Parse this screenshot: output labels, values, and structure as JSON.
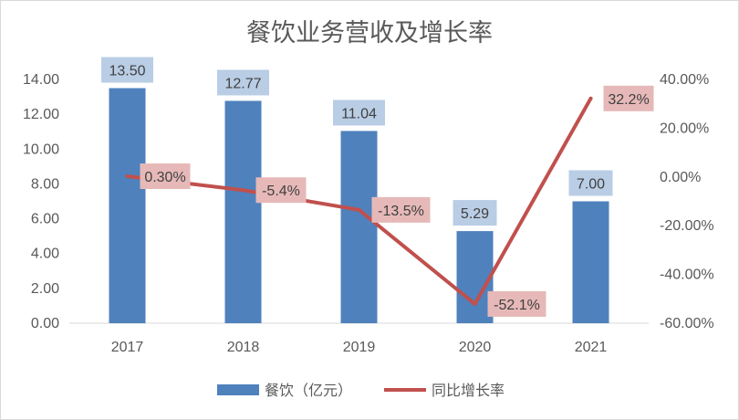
{
  "chart_data": {
    "type": "bar+line",
    "title": "餐饮业务营收及增长率",
    "categories": [
      "2017",
      "2018",
      "2019",
      "2020",
      "2021"
    ],
    "series": [
      {
        "name": "餐饮（亿元）",
        "type": "bar",
        "axis": "left",
        "values": [
          13.5,
          12.77,
          11.04,
          5.29,
          7.0
        ],
        "labels": [
          "13.50",
          "12.77",
          "11.04",
          "5.29",
          "7.00"
        ]
      },
      {
        "name": "同比增长率",
        "type": "line",
        "axis": "right",
        "values": [
          0.3,
          -5.4,
          -13.5,
          -52.1,
          32.2
        ],
        "labels": [
          "0.30%",
          "-5.4%",
          "-13.5%",
          "-52.1%",
          "32.2%"
        ]
      }
    ],
    "y_left": {
      "ylim": [
        0,
        14
      ],
      "ticks": [
        0,
        2,
        4,
        6,
        8,
        10,
        12,
        14
      ],
      "tick_labels": [
        "0.00",
        "2.00",
        "4.00",
        "6.00",
        "8.00",
        "10.00",
        "12.00",
        "14.00"
      ]
    },
    "y_right": {
      "ylim": [
        -60,
        40
      ],
      "ticks": [
        -60,
        -40,
        -20,
        0,
        20,
        40
      ],
      "tick_labels": [
        "-60.00%",
        "-40.00%",
        "-20.00%",
        "0.00%",
        "20.00%",
        "40.00%"
      ]
    },
    "grid": false,
    "legend_position": "bottom",
    "colors": {
      "bar": "#4f81bd",
      "line": "#c0504d",
      "bar_label_bg": "#b9cde5",
      "line_label_bg": "#e6b9b8",
      "axis": "#d9d9d9"
    }
  }
}
